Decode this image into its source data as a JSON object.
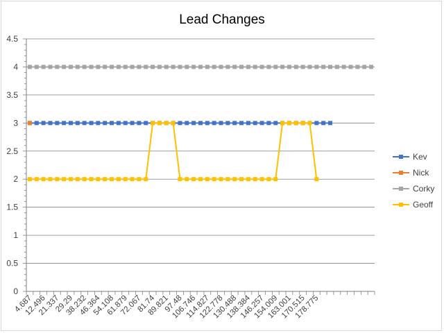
{
  "chart_data": {
    "type": "line",
    "title": "Lead Changes",
    "xlabel": "",
    "ylabel": "",
    "ylim": [
      0,
      4.5
    ],
    "y_ticks": [
      "0",
      "0.5",
      "1",
      "1.5",
      "2",
      "2.5",
      "3",
      "3.5",
      "4",
      "4.5"
    ],
    "grid": true,
    "legend_position": "right",
    "x_tick_labels": [
      "4.687",
      "12.496",
      "21.337",
      "29.29",
      "38.232",
      "46.364",
      "54.108",
      "61.879",
      "72.067",
      "81.74",
      "89.821",
      "97.48",
      "106.746",
      "114.827",
      "122.778",
      "130.488",
      "138.384",
      "146.257",
      "154.009",
      "163.001",
      "170.515",
      "178.775"
    ],
    "series": [
      {
        "name": "Kev",
        "color": "#4472c4",
        "values": [
          3,
          3,
          3,
          3,
          3,
          3,
          3,
          3,
          3,
          3,
          3,
          3,
          3,
          3,
          3,
          3,
          3,
          3,
          3,
          3,
          3,
          3,
          3,
          3,
          3,
          3,
          3,
          3,
          3,
          3,
          3,
          3,
          3,
          3,
          3,
          3,
          3,
          3,
          3,
          3,
          3,
          3,
          3,
          3,
          3
        ]
      },
      {
        "name": "Nick",
        "color": "#ed7d31",
        "values": [
          3
        ]
      },
      {
        "name": "Corky",
        "color": "#a5a5a5",
        "values": [
          4,
          4,
          4,
          4,
          4,
          4,
          4,
          4,
          4,
          4,
          4,
          4,
          4,
          4,
          4,
          4,
          4,
          4,
          4,
          4,
          4,
          4,
          4,
          4,
          4,
          4,
          4,
          4,
          4,
          4,
          4,
          4,
          4,
          4,
          4,
          4,
          4,
          4,
          4,
          4,
          4,
          4,
          4,
          4,
          4,
          4,
          4,
          4,
          4,
          4,
          4
        ]
      },
      {
        "name": "Geoff",
        "color": "#ffc000",
        "values": [
          2,
          2,
          2,
          2,
          2,
          2,
          2,
          2,
          2,
          2,
          2,
          2,
          2,
          2,
          2,
          2,
          2,
          2,
          3,
          3,
          3,
          3,
          2,
          2,
          2,
          2,
          2,
          2,
          2,
          2,
          2,
          2,
          2,
          2,
          2,
          2,
          2,
          3,
          3,
          3,
          3,
          3,
          2
        ]
      }
    ]
  }
}
